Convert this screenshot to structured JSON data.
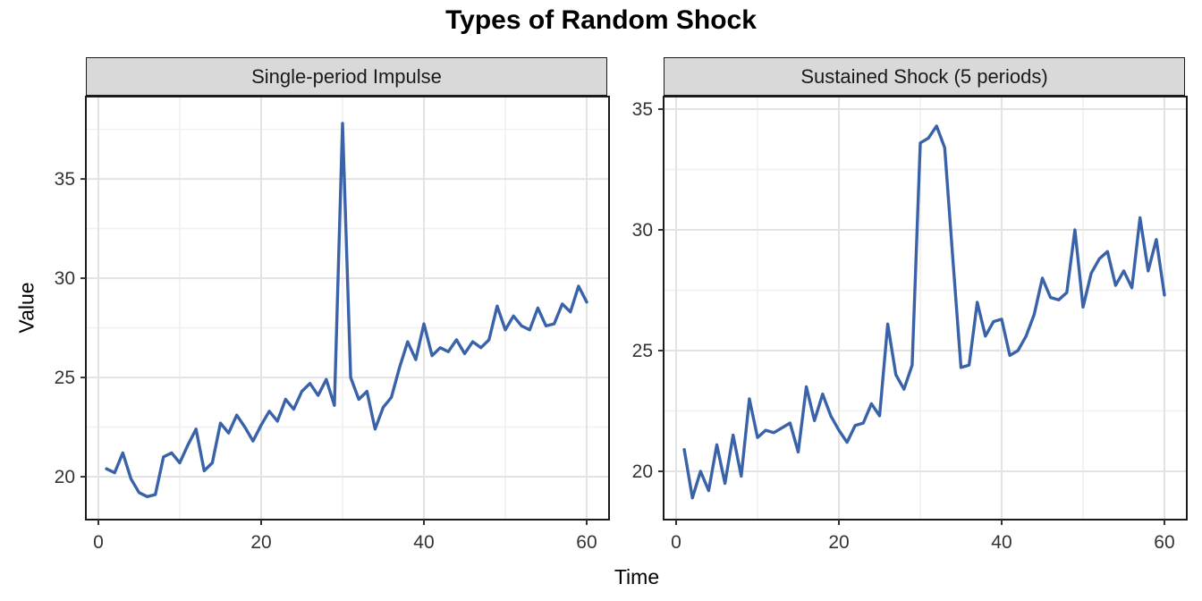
{
  "title": "Types of Random Shock",
  "axes": {
    "x_label": "Time",
    "y_label": "Value"
  },
  "style": {
    "line_color": "#3A62A8",
    "strip_fill": "#D9D9D9",
    "panel_border": "#1A1A1A",
    "grid_major": "#E3E3E3",
    "grid_minor": "#F0F0F0",
    "tick_label_color": "#333333"
  },
  "chart_data": [
    {
      "type": "line",
      "facet": "Single-period Impulse",
      "x": [
        1,
        2,
        3,
        4,
        5,
        6,
        7,
        8,
        9,
        10,
        11,
        12,
        13,
        14,
        15,
        16,
        17,
        18,
        19,
        20,
        21,
        22,
        23,
        24,
        25,
        26,
        27,
        28,
        29,
        30,
        31,
        32,
        33,
        34,
        35,
        36,
        37,
        38,
        39,
        40,
        41,
        42,
        43,
        44,
        45,
        46,
        47,
        48,
        49,
        50,
        51,
        52,
        53,
        54,
        55,
        56,
        57,
        58,
        59,
        60
      ],
      "values": [
        20.4,
        20.2,
        21.2,
        19.9,
        19.2,
        19.0,
        19.1,
        21.0,
        21.2,
        20.7,
        21.6,
        22.4,
        20.3,
        20.7,
        22.7,
        22.2,
        23.1,
        22.5,
        21.8,
        22.6,
        23.3,
        22.8,
        23.9,
        23.4,
        24.3,
        24.7,
        24.1,
        24.9,
        23.6,
        37.8,
        25.0,
        23.9,
        24.3,
        22.4,
        23.5,
        24.0,
        25.5,
        26.8,
        25.9,
        27.7,
        26.1,
        26.5,
        26.3,
        26.9,
        26.2,
        26.8,
        26.5,
        26.9,
        28.6,
        27.4,
        28.1,
        27.6,
        27.4,
        28.5,
        27.6,
        27.7,
        28.7,
        28.3,
        29.6,
        28.8
      ],
      "x_ticks": [
        0,
        20,
        40,
        60
      ],
      "y_ticks": [
        20,
        25,
        30,
        35
      ],
      "x_minor": [
        10,
        30,
        50
      ],
      "y_minor": [
        22.5,
        27.5,
        32.5,
        37.5
      ],
      "x_domain": [
        -1.54,
        62.75
      ],
      "y_domain": [
        17.84,
        39.15
      ],
      "grid": true,
      "legend": "none"
    },
    {
      "type": "line",
      "facet": "Sustained Shock (5 periods)",
      "x": [
        1,
        2,
        3,
        4,
        5,
        6,
        7,
        8,
        9,
        10,
        11,
        12,
        13,
        14,
        15,
        16,
        17,
        18,
        19,
        20,
        21,
        22,
        23,
        24,
        25,
        26,
        27,
        28,
        29,
        30,
        31,
        32,
        33,
        34,
        35,
        36,
        37,
        38,
        39,
        40,
        41,
        42,
        43,
        44,
        45,
        46,
        47,
        48,
        49,
        50,
        51,
        52,
        53,
        54,
        55,
        56,
        57,
        58,
        59,
        60
      ],
      "values": [
        20.9,
        18.9,
        20.0,
        19.2,
        21.1,
        19.5,
        21.5,
        19.8,
        23.0,
        21.4,
        21.7,
        21.6,
        21.8,
        22.0,
        20.8,
        23.5,
        22.1,
        23.2,
        22.3,
        21.7,
        21.2,
        21.9,
        22.0,
        22.8,
        22.3,
        26.1,
        24.0,
        23.4,
        24.4,
        33.6,
        33.8,
        34.3,
        33.4,
        28.8,
        24.3,
        24.4,
        27.0,
        25.6,
        26.2,
        26.3,
        24.8,
        25.0,
        25.6,
        26.5,
        28.0,
        27.2,
        27.1,
        27.4,
        30.0,
        26.8,
        28.2,
        28.8,
        29.1,
        27.7,
        28.3,
        27.6,
        30.5,
        28.3,
        29.6,
        27.3
      ],
      "x_ticks": [
        0,
        20,
        40,
        60
      ],
      "y_ticks": [
        20,
        25,
        30,
        35
      ],
      "x_minor": [
        10,
        30,
        50
      ],
      "y_minor": [
        22.5,
        27.5,
        32.5
      ],
      "x_domain": [
        -1.54,
        62.75
      ],
      "y_domain": [
        18.0,
        35.52
      ],
      "grid": true,
      "legend": "none"
    }
  ]
}
